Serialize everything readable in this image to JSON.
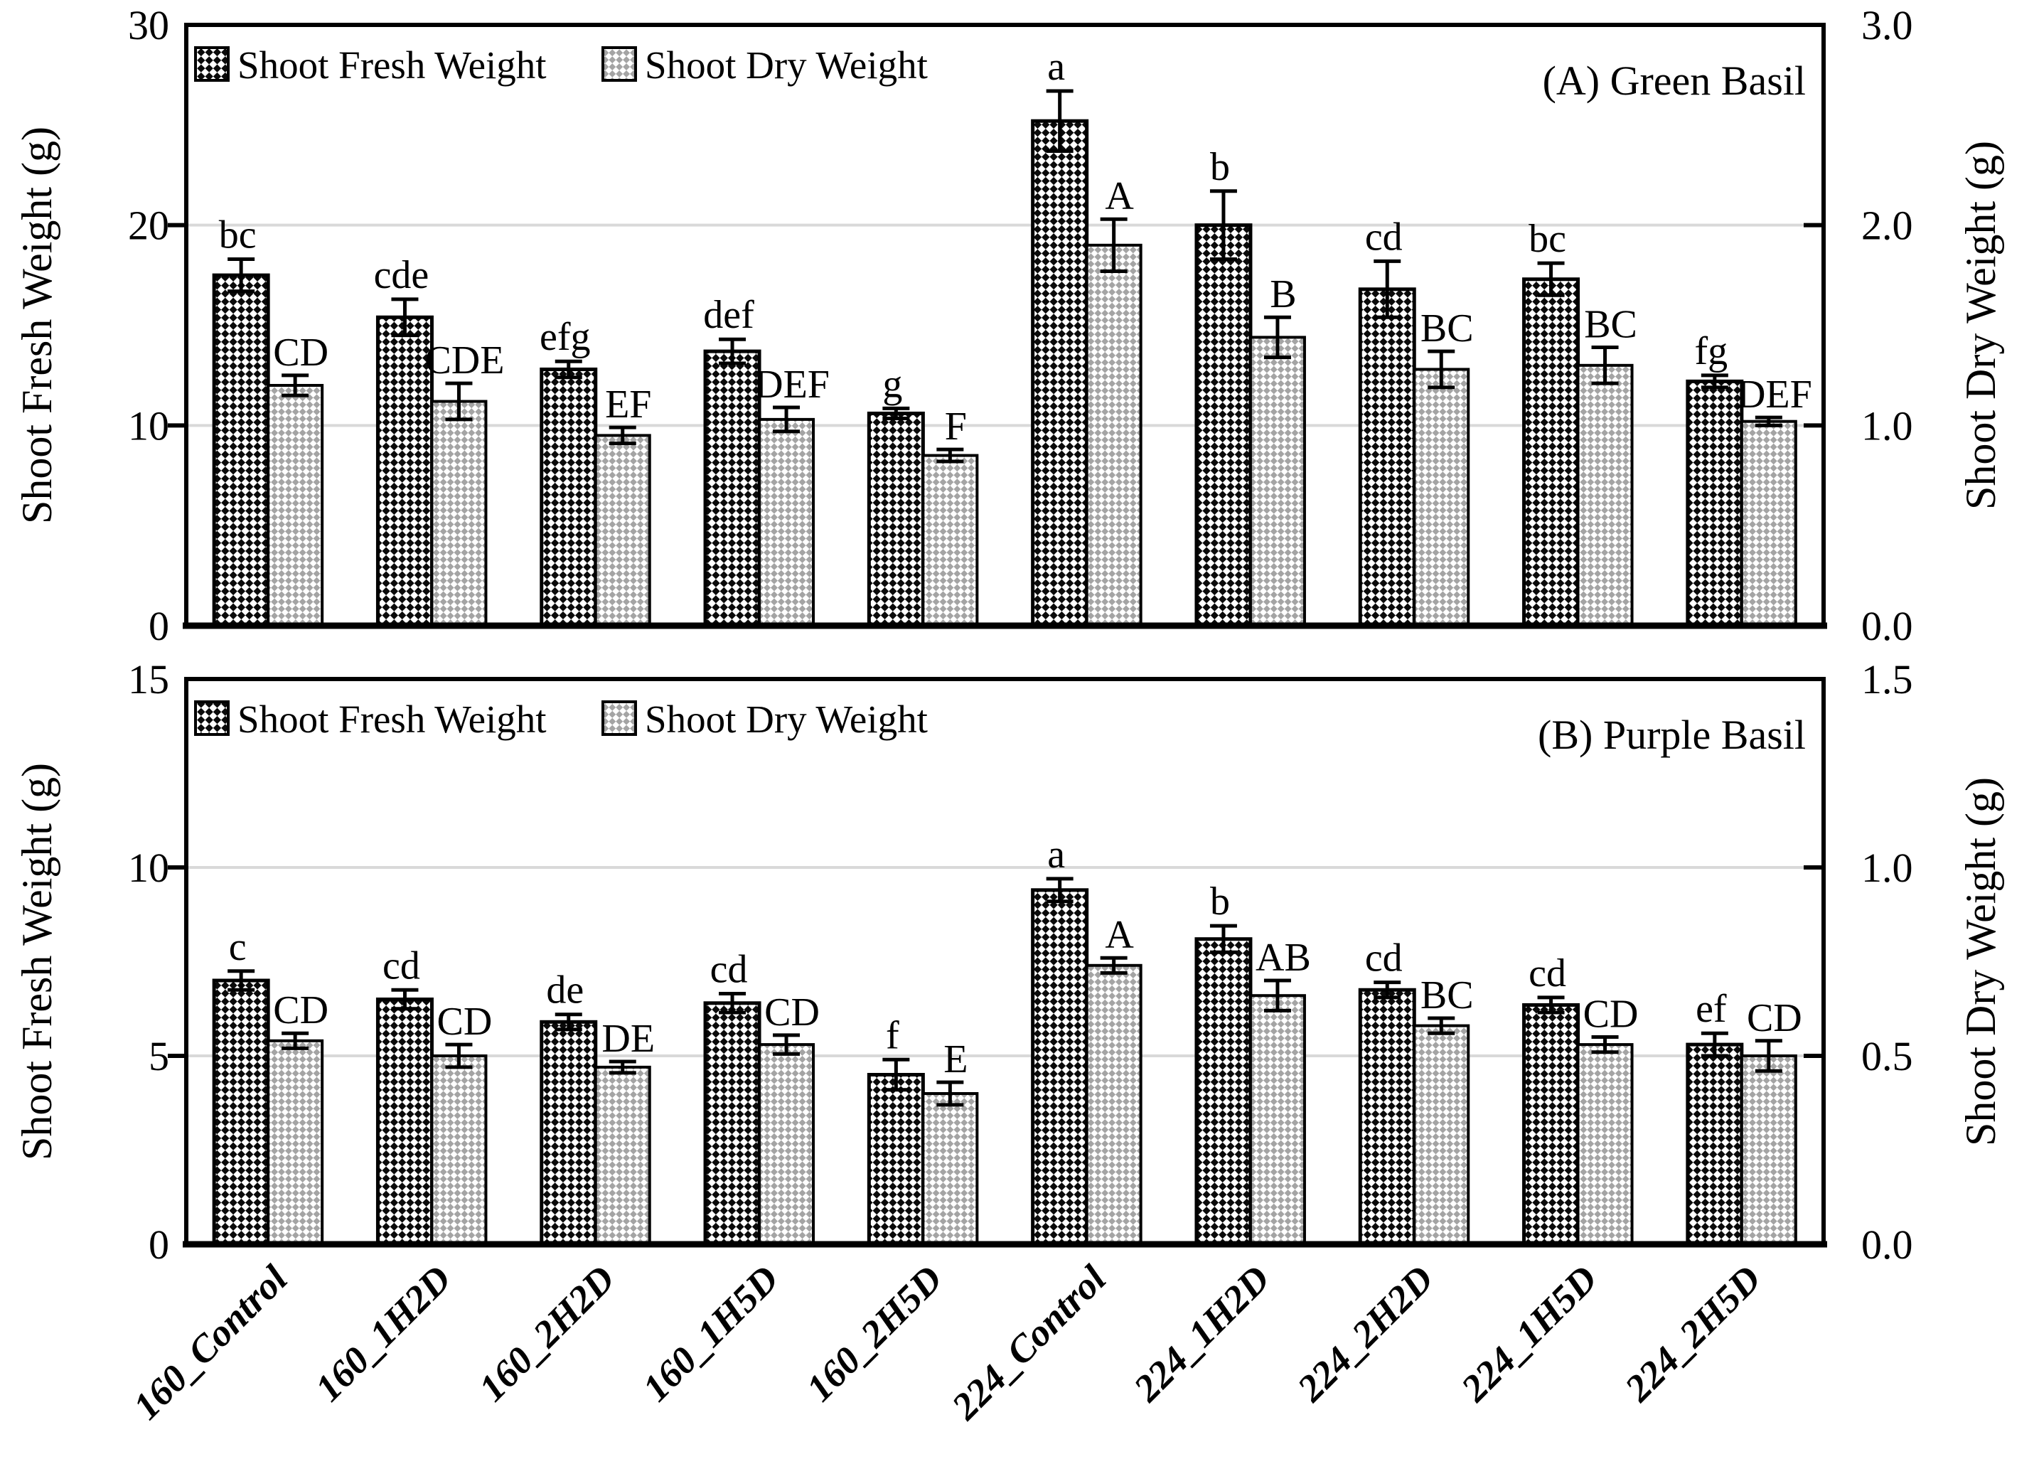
{
  "figure": {
    "background": "#ffffff",
    "x_categories": [
      "160_Control",
      "160_1H2D",
      "160_2H2D",
      "160_1H5D",
      "160_2H5D",
      "224_Control",
      "224_1H2D",
      "224_2H2D",
      "224_1H5D",
      "224_2H5D"
    ]
  },
  "colors": {
    "fresh_pattern": "#0a0a0a",
    "dry_pattern": "#a4a4a4",
    "bar_outline": "#000000",
    "gridline": "#d9d9d9",
    "frame": "#000000",
    "text": "#000000",
    "background": "#ffffff"
  },
  "chart_data": [
    {
      "type": "bar",
      "panel_label": "(A) Green Basil",
      "legend": [
        "Shoot Fresh Weight",
        "Shoot Dry Weight"
      ],
      "legend_position": "top-left",
      "grid": true,
      "left_axis": {
        "label": "Shoot Fresh Weight (g)",
        "ticks": [
          0,
          10,
          20,
          30
        ],
        "range": [
          0,
          30
        ]
      },
      "right_axis": {
        "label": "Shoot Dry Weight  (g)",
        "ticks": [
          "0.0",
          "1.0",
          "2.0",
          "3.0"
        ],
        "range": [
          0,
          3
        ]
      },
      "categories": [
        "160_Control",
        "160_1H2D",
        "160_2H2D",
        "160_1H5D",
        "160_2H5D",
        "224_Control",
        "224_1H2D",
        "224_2H2D",
        "224_1H5D",
        "224_2H5D"
      ],
      "series": [
        {
          "name": "Shoot Fresh Weight",
          "axis": "left",
          "values": [
            17.5,
            15.4,
            12.8,
            13.7,
            10.6,
            25.2,
            20.0,
            16.8,
            17.3,
            12.2
          ],
          "errors": [
            0.8,
            0.9,
            0.4,
            0.6,
            0.25,
            1.5,
            1.7,
            1.4,
            0.8,
            0.3
          ],
          "letters": [
            "bc",
            "cde",
            "efg",
            "def",
            "g",
            "a",
            "b",
            "cd",
            "bc",
            "fg"
          ]
        },
        {
          "name": "Shoot Dry Weight",
          "axis": "right",
          "values": [
            1.2,
            1.12,
            0.95,
            1.03,
            0.85,
            1.9,
            1.44,
            1.28,
            1.3,
            1.02
          ],
          "errors": [
            0.05,
            0.09,
            0.04,
            0.06,
            0.03,
            0.13,
            0.1,
            0.09,
            0.09,
            0.02
          ],
          "letters": [
            "CD",
            "CDE",
            "EF",
            "DEF",
            "F",
            "A",
            "B",
            "BC",
            "BC",
            "DEF"
          ]
        }
      ]
    },
    {
      "type": "bar",
      "panel_label": "(B) Purple  Basil",
      "legend": [
        "Shoot Fresh Weight",
        "Shoot Dry Weight"
      ],
      "legend_position": "top-left",
      "grid": true,
      "left_axis": {
        "label": "Shoot Fresh Weight (g)",
        "ticks": [
          0,
          5,
          10,
          15
        ],
        "range": [
          0,
          15
        ]
      },
      "right_axis": {
        "label": "Shoot Dry Weight  (g)",
        "ticks": [
          "0.0",
          "0.5",
          "1.0",
          "1.5"
        ],
        "range": [
          0,
          1.5
        ]
      },
      "categories": [
        "160_Control",
        "160_1H2D",
        "160_2H2D",
        "160_1H5D",
        "160_2H5D",
        "224_Control",
        "224_1H2D",
        "224_2H2D",
        "224_1H5D",
        "224_2H5D"
      ],
      "series": [
        {
          "name": "Shoot Fresh Weight",
          "axis": "left",
          "values": [
            7.0,
            6.5,
            5.9,
            6.4,
            4.5,
            9.4,
            8.1,
            6.75,
            6.35,
            5.3
          ],
          "errors": [
            0.25,
            0.25,
            0.2,
            0.25,
            0.4,
            0.3,
            0.35,
            0.2,
            0.2,
            0.3
          ],
          "letters": [
            "c",
            "cd",
            "de",
            "cd",
            "f",
            "a",
            "b",
            "cd",
            "cd",
            "ef"
          ]
        },
        {
          "name": "Shoot Dry Weight",
          "axis": "right",
          "values": [
            0.54,
            0.5,
            0.47,
            0.53,
            0.4,
            0.74,
            0.66,
            0.58,
            0.53,
            0.5
          ],
          "errors": [
            0.02,
            0.03,
            0.015,
            0.025,
            0.03,
            0.02,
            0.04,
            0.02,
            0.02,
            0.04
          ],
          "letters": [
            "CD",
            "CD",
            "DE",
            "CD",
            "E",
            "A",
            "AB",
            "BC",
            "CD",
            "CD"
          ]
        }
      ]
    }
  ]
}
